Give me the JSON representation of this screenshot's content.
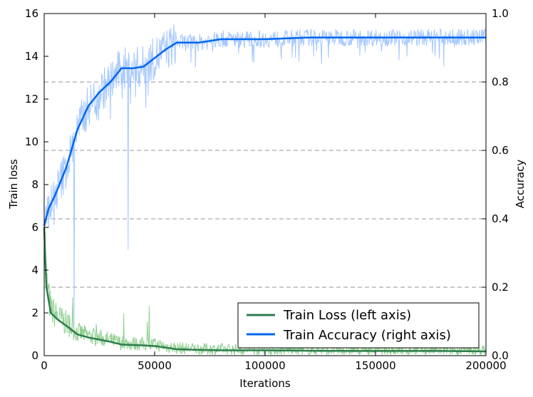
{
  "chart_data": {
    "type": "line",
    "xlabel": "Iterations",
    "ylabel_left": "Train loss",
    "ylabel_right": "Accuracy",
    "xlim": [
      0,
      200000
    ],
    "ylim_left": [
      0,
      16
    ],
    "ylim_right": [
      0.0,
      1.0
    ],
    "x_ticks": [
      "0",
      "50000",
      "100000",
      "150000",
      "200000"
    ],
    "y_ticks_left": [
      "0",
      "2",
      "4",
      "6",
      "8",
      "10",
      "12",
      "14",
      "16"
    ],
    "y_ticks_right": [
      "0.0",
      "0.2",
      "0.4",
      "0.6",
      "0.8",
      "1.0"
    ],
    "grid": "dashed horizontal at right-axis ticks",
    "legend_position": "lower-right",
    "legend": [
      "Train Loss (left axis)",
      "Train Accuracy (right axis)"
    ],
    "series": [
      {
        "name": "Train Loss (left axis)",
        "axis": "left",
        "color": "#2e7d4f",
        "raw_color": "#8fd08f",
        "x": [
          0,
          1000,
          3000,
          6000,
          10000,
          15000,
          20000,
          25000,
          30000,
          35000,
          40000,
          45000,
          50000,
          55000,
          60000,
          70000,
          80000,
          100000,
          120000,
          140000,
          160000,
          180000,
          200000
        ],
        "values": [
          6.0,
          3.2,
          2.0,
          1.7,
          1.4,
          1.0,
          0.85,
          0.75,
          0.65,
          0.52,
          0.5,
          0.48,
          0.45,
          0.38,
          0.3,
          0.27,
          0.25,
          0.25,
          0.23,
          0.22,
          0.22,
          0.22,
          0.2
        ]
      },
      {
        "name": "Train Accuracy (right axis)",
        "axis": "right",
        "color": "#0066ee",
        "raw_color": "#a5c8ff",
        "x": [
          0,
          2000,
          5000,
          10000,
          15000,
          20000,
          25000,
          30000,
          35000,
          40000,
          45000,
          50000,
          55000,
          60000,
          70000,
          80000,
          100000,
          120000,
          140000,
          160000,
          180000,
          200000
        ],
        "values": [
          0.38,
          0.43,
          0.47,
          0.55,
          0.66,
          0.73,
          0.77,
          0.8,
          0.84,
          0.84,
          0.845,
          0.87,
          0.895,
          0.915,
          0.915,
          0.925,
          0.925,
          0.93,
          0.93,
          0.93,
          0.93,
          0.93
        ]
      }
    ]
  }
}
